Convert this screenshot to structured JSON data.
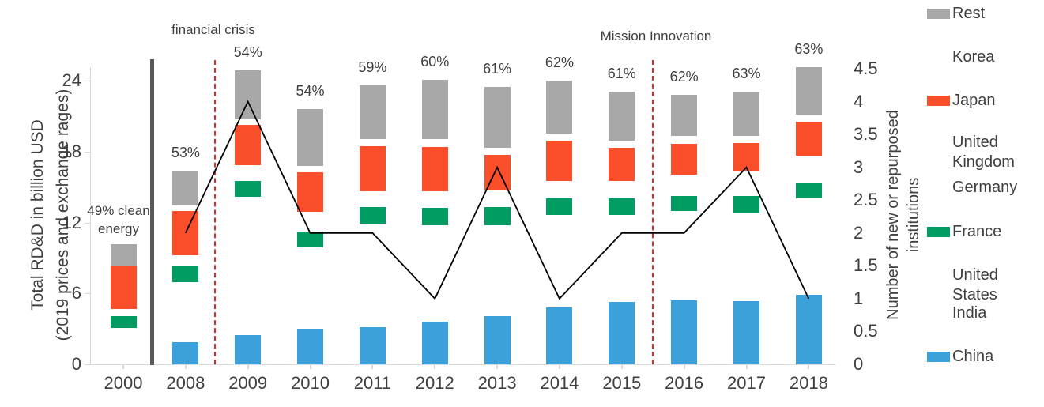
{
  "left_axis": {
    "title_line1": "Total RD&D in billion USD",
    "title_line2": "(2019 prices and exchange rages)",
    "tick_labels": [
      "24",
      "18",
      "12",
      "6",
      "0"
    ],
    "tick_values": [
      24,
      18,
      12,
      6,
      0
    ]
  },
  "right_axis": {
    "title_line1": "Number of new or repurposed",
    "title_line2": "institutions",
    "tick_labels": [
      "4.5",
      "4",
      "3.5",
      "3",
      "2.5",
      "2",
      "1.5",
      "1",
      "0.5",
      "0"
    ],
    "tick_values": [
      4.5,
      4,
      3.5,
      3,
      2.5,
      2,
      1.5,
      1,
      0.5,
      0
    ]
  },
  "annotations": {
    "financial_crisis": "financial crisis",
    "mission_innovation": "Mission Innovation",
    "clean_energy": "49% clean energy"
  },
  "colors": {
    "china_blue": "#3ca0da",
    "france_green": "#009c62",
    "japan_red": "#fb4f2c",
    "rest_gray": "#a8a8a8",
    "separator_gray": "#595959",
    "dashed_red": "#e02b2b",
    "line_black": "#000000",
    "axis_gray": "#d9d9d9",
    "text_gray": "#3f3f3f"
  },
  "legend": {
    "items": [
      {
        "label": "Rest",
        "color": "#a8a8a8"
      },
      {
        "label": "Korea",
        "color": null
      },
      {
        "label": "Japan",
        "color": "#fb4f2c"
      },
      {
        "label": "United Kingdom",
        "color": null
      },
      {
        "label": "Germany",
        "color": null
      },
      {
        "label": "France",
        "color": "#009c62"
      },
      {
        "label": "United States",
        "color": null
      },
      {
        "label": "India",
        "color": null
      },
      {
        "label": "China",
        "color": "#3ca0da"
      }
    ]
  },
  "chart_data": {
    "type": "bar",
    "subtype": "stacked-bar-with-line-overlay",
    "categories": [
      "2000",
      "2008",
      "2009",
      "2010",
      "2011",
      "2012",
      "2013",
      "2014",
      "2015",
      "2016",
      "2017",
      "2018"
    ],
    "ylabel_left": "Total RD&D in billion USD (2019 prices and exchange rages)",
    "ylabel_right": "Number of new or repurposed institutions",
    "left_ylim": [
      0,
      25.2
    ],
    "right_ylim": [
      0,
      4.5
    ],
    "grid": false,
    "stacked_series": [
      {
        "name": "China",
        "color": "#3ca0da",
        "values": [
          0,
          1.85,
          2.5,
          3.0,
          3.15,
          3.6,
          4.1,
          4.8,
          5.3,
          5.4,
          5.35,
          5.9
        ]
      },
      {
        "name": "India + United States (white, not visible)",
        "color": "#ffffff",
        "values": [
          3.1,
          5.1,
          11.65,
          6.9,
          8.75,
          8.15,
          7.65,
          7.85,
          7.35,
          7.6,
          7.45,
          8.15
        ]
      },
      {
        "name": "France",
        "color": "#009c62",
        "values": [
          0.95,
          1.4,
          1.35,
          1.35,
          1.4,
          1.5,
          1.55,
          1.4,
          1.4,
          1.25,
          1.45,
          1.3
        ]
      },
      {
        "name": "Germany + United Kingdom (white, not visible)",
        "color": "#ffffff",
        "values": [
          0.6,
          0.9,
          1.35,
          1.65,
          1.35,
          1.4,
          1.4,
          1.45,
          1.5,
          1.8,
          2.1,
          2.3
        ]
      },
      {
        "name": "Japan",
        "color": "#fb4f2c",
        "values": [
          3.7,
          3.75,
          3.45,
          3.35,
          3.8,
          3.75,
          3.05,
          3.45,
          2.8,
          2.6,
          2.4,
          2.9
        ]
      },
      {
        "name": "Korea (white, not visible)",
        "color": "#ffffff",
        "values": [
          0,
          0.45,
          0.45,
          0.55,
          0.6,
          0.65,
          0.6,
          0.55,
          0.6,
          0.65,
          0.6,
          0.6
        ]
      },
      {
        "name": "Rest",
        "color": "#a8a8a8",
        "values": [
          1.85,
          2.95,
          4.15,
          4.8,
          4.55,
          5.05,
          5.1,
          4.5,
          4.15,
          3.5,
          3.7,
          4.0
        ]
      }
    ],
    "bar_totals": [
      10.2,
      16.4,
      24.9,
      21.6,
      23.6,
      24.1,
      23.45,
      24.0,
      23.1,
      22.8,
      23.05,
      25.15
    ],
    "bar_pct_labels": [
      "",
      "53%",
      "54%",
      "54%",
      "59%",
      "60%",
      "61%",
      "62%",
      "61%",
      "62%",
      "63%",
      "63%"
    ],
    "line_series": {
      "name": "Number of new or repurposed institutions",
      "axis": "right",
      "categories": [
        "2008",
        "2009",
        "2010",
        "2011",
        "2012",
        "2013",
        "2014",
        "2015",
        "2016",
        "2017",
        "2018"
      ],
      "values": [
        2,
        4,
        2,
        2,
        1,
        3,
        1,
        2,
        2,
        3,
        1
      ]
    }
  }
}
